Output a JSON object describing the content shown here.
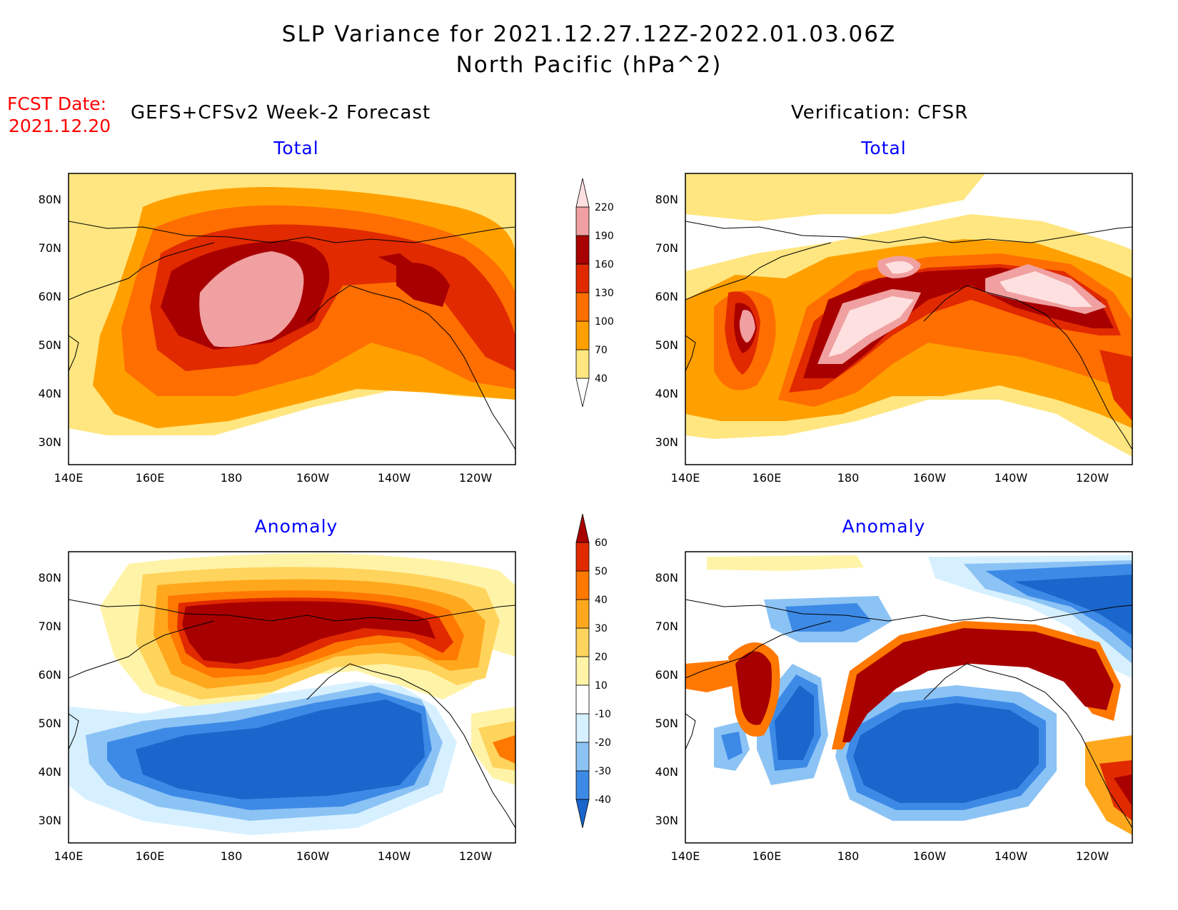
{
  "header": {
    "title_line1": "SLP Variance for 2021.12.27.12Z-2022.01.03.06Z",
    "title_line2": "North Pacific (hPa^2)",
    "fcst_label": "FCST Date:",
    "fcst_date": "2021.12.20",
    "left_column_title": "GEFS+CFSv2 Week-2 Forecast",
    "right_column_title": "Verification: CFSR"
  },
  "panels": {
    "forecast_total_title": "Total",
    "verification_total_title": "Total",
    "forecast_anomaly_title": "Anomaly",
    "verification_anomaly_title": "Anomaly"
  },
  "axes": {
    "lat_labels": [
      "80N",
      "70N",
      "60N",
      "50N",
      "40N",
      "30N"
    ],
    "lon_labels": [
      "140E",
      "160E",
      "180",
      "160W",
      "140W",
      "120W"
    ]
  },
  "colorbars": {
    "total": {
      "levels": [
        "40",
        "70",
        "100",
        "130",
        "160",
        "190",
        "220"
      ],
      "colors": [
        "#ffffff",
        "#ffe680",
        "#ffa000",
        "#ff6e00",
        "#e12a00",
        "#a80000",
        "#f0a0a0",
        "#ffe0e0"
      ]
    },
    "anomaly": {
      "levels": [
        "-40",
        "-30",
        "-20",
        "-10",
        "10",
        "20",
        "30",
        "40",
        "50",
        "60"
      ],
      "colors": [
        "#1966cc",
        "#3d8ae6",
        "#8cc3f5",
        "#d6f0ff",
        "#ffffff",
        "#fff3a8",
        "#ffd45c",
        "#ffa81e",
        "#ff7800",
        "#e12a00",
        "#a80000"
      ]
    }
  }
}
